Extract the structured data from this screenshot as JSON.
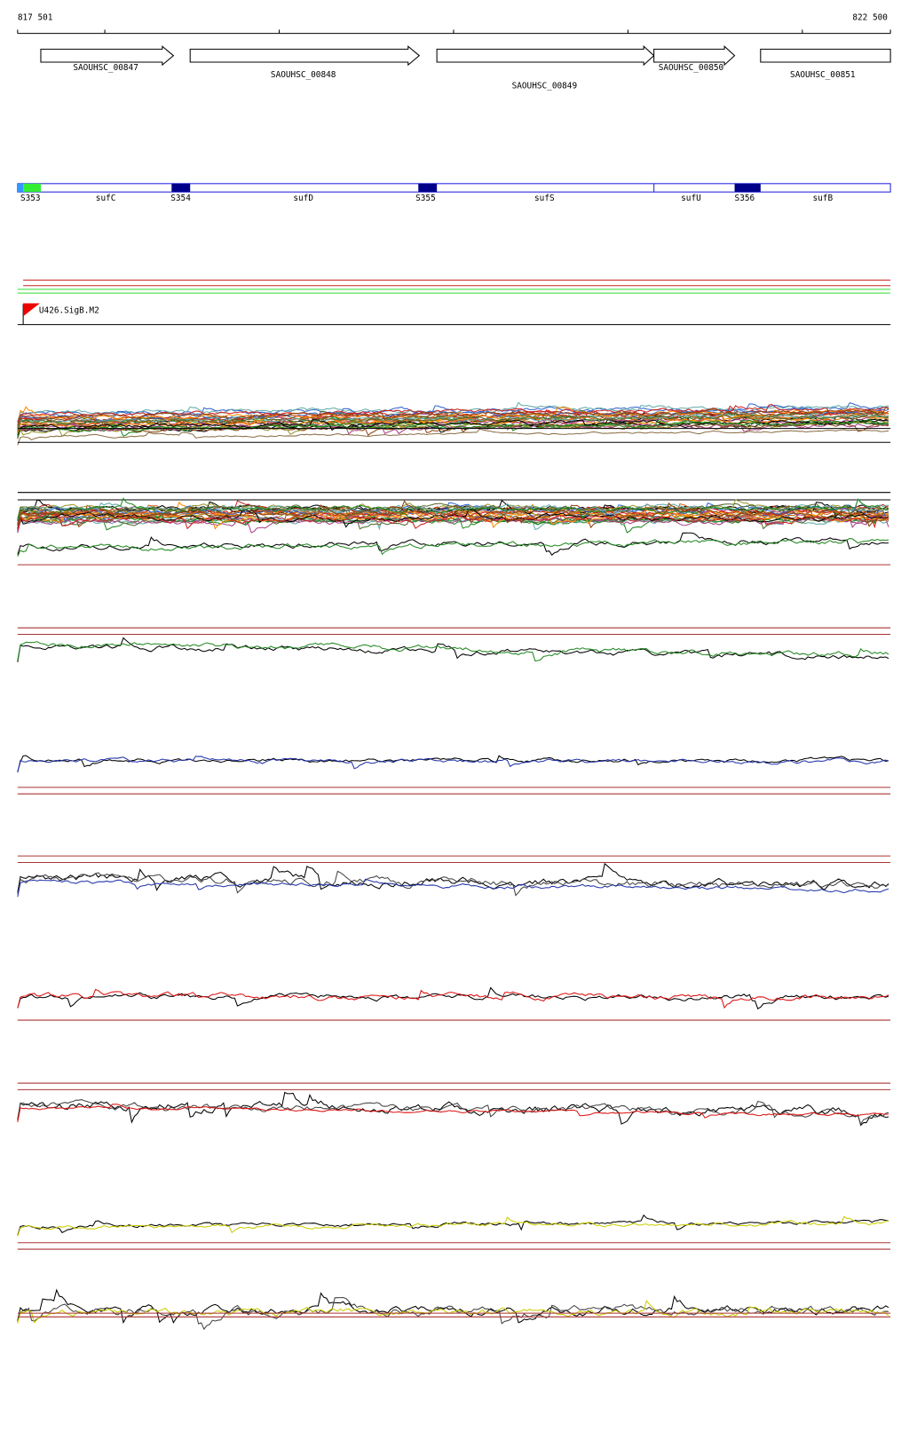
{
  "header": {
    "start": "817 501",
    "end": "822 500"
  },
  "genes": [
    "SAOUHSC_00847",
    "SAOUHSC_00848",
    "SAOUHSC_00849",
    "SAOUHSC_00850",
    "SAOUHSC_00851"
  ],
  "features": [
    "S353",
    "sufC",
    "S354",
    "sufD",
    "S355",
    "sufS",
    "sufU",
    "S356",
    "sufB"
  ],
  "track": {
    "label": "U426.SigB.M2"
  }
}
